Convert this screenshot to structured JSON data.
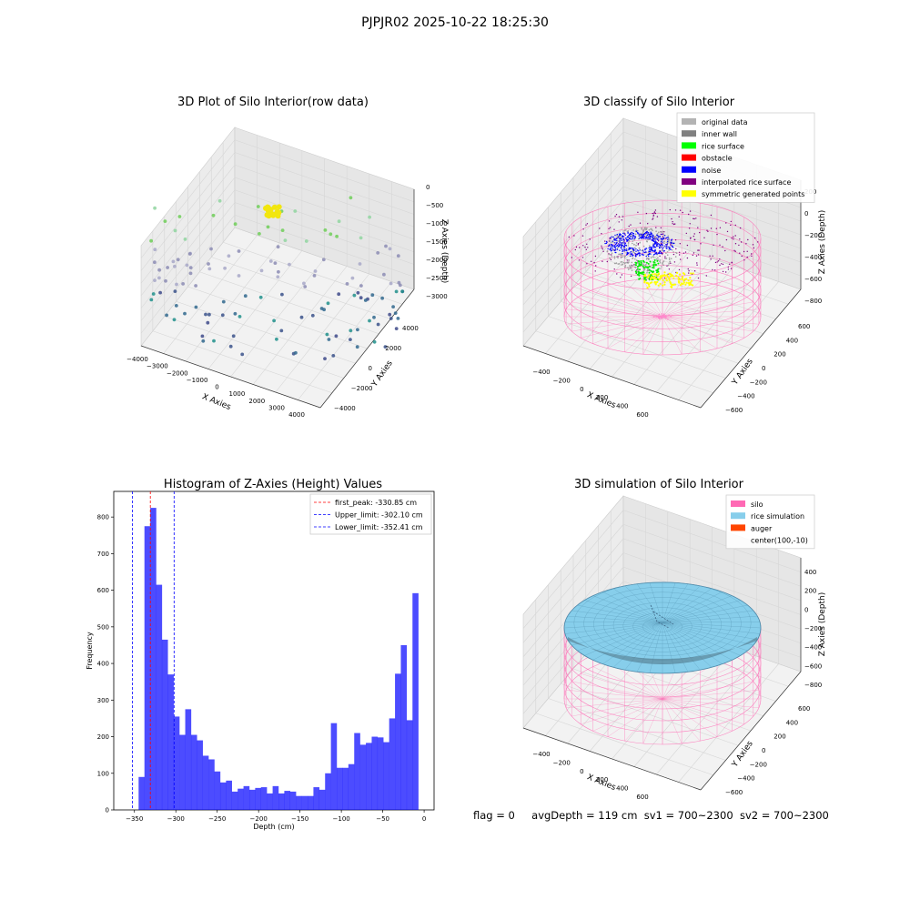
{
  "suptitle": "PJPJR02 2025-10-22 18:25:30",
  "footer": {
    "flag": "flag = 0",
    "avg_depth": "avgDepth = 119 cm",
    "sv1": "sv1 = 700~2300",
    "sv2": "sv2 = 700~2300"
  },
  "chart_data": [
    {
      "type": "scatter",
      "title": "3D Plot of Silo Interior(row data)",
      "xlabel": "X Axies",
      "ylabel": "Y Axies",
      "zlabel": "Z Axies (Depth)",
      "x_ticks": [
        "−4000",
        "−3000",
        "−2000",
        "−1000",
        "0",
        "1000",
        "2000",
        "3000",
        "4000"
      ],
      "y_ticks": [
        "−4000",
        "−2000",
        "0",
        "2000",
        "4000"
      ],
      "z_ticks": [
        "−3000",
        "−2500",
        "−2000",
        "−1500",
        "−1000",
        "−500",
        "0"
      ],
      "xlim": [
        -4000,
        4000
      ],
      "ylim": [
        -4000,
        4000
      ],
      "zlim": [
        -3300,
        0
      ],
      "grid": true
    },
    {
      "type": "scatter",
      "title": "3D classify of Silo Interior",
      "xlabel": "X Axies",
      "ylabel": "Y Axies",
      "zlabel": "Z Axies (Depth)",
      "x_ticks": [
        "−400",
        "−200",
        "0",
        "200",
        "400",
        "600"
      ],
      "y_ticks": [
        "−600",
        "−400",
        "−200",
        "0",
        "200",
        "400",
        "600"
      ],
      "z_ticks": [
        "−800",
        "−600",
        "−400",
        "−200",
        "0",
        "200"
      ],
      "xlim": [
        -500,
        700
      ],
      "ylim": [
        -650,
        650
      ],
      "zlim": [
        -900,
        250
      ],
      "legend_position": "top-right",
      "legend": [
        {
          "label": "original data",
          "color": "#b3b3b3"
        },
        {
          "label": "inner wall",
          "color": "#808080"
        },
        {
          "label": "rice surface",
          "color": "#00ff00"
        },
        {
          "label": "obstacle",
          "color": "#ff0000"
        },
        {
          "label": "noise",
          "color": "#0000ff"
        },
        {
          "label": "interpolated rice surface",
          "color": "#800080"
        },
        {
          "label": "symmetric generated points",
          "color": "#ffff00"
        }
      ],
      "grid": true
    },
    {
      "type": "bar",
      "title": "Histogram of Z-Axies (Height) Values",
      "xlabel": "Depth (cm)",
      "ylabel": "Frequency",
      "x_ticks": [
        -350,
        -300,
        -250,
        -200,
        -150,
        -100,
        -50,
        0
      ],
      "x_tick_labels": [
        "−350",
        "−300",
        "−250",
        "−200",
        "−150",
        "−100",
        "−50",
        "0"
      ],
      "y_ticks": [
        0,
        100,
        200,
        300,
        400,
        500,
        600,
        700,
        800
      ],
      "xlim": [
        -375,
        12
      ],
      "ylim": [
        0,
        870
      ],
      "bin_start": -352,
      "bin_width": 7.04,
      "values": [
        0,
        90,
        775,
        825,
        615,
        465,
        370,
        255,
        205,
        275,
        205,
        190,
        148,
        138,
        105,
        75,
        80,
        50,
        58,
        65,
        55,
        60,
        62,
        45,
        65,
        45,
        52,
        50,
        38,
        38,
        38,
        62,
        55,
        100,
        237,
        115,
        115,
        125,
        210,
        178,
        183,
        200,
        198,
        185,
        250,
        372,
        450,
        245,
        592
      ],
      "bar_color": "#0000ff",
      "bar_alpha": 0.7,
      "lines": [
        {
          "label": "first_peak: -330.85 cm",
          "x": -330.85,
          "color": "#ff0000"
        },
        {
          "label": "Upper_limit: -302.10 cm",
          "x": -302.1,
          "color": "#0000ff"
        },
        {
          "label": "Lower_limit: -352.41 cm",
          "x": -352.41,
          "color": "#0000ff"
        }
      ],
      "legend_position": "top-right"
    },
    {
      "type": "surface",
      "title": "3D simulation of Silo Interior",
      "xlabel": "X Axies",
      "ylabel": "Y Axies",
      "zlabel": "Z Axies (Depth)",
      "x_ticks": [
        "−400",
        "−200",
        "0",
        "200",
        "400",
        "600"
      ],
      "y_ticks": [
        "−600",
        "−400",
        "−200",
        "0",
        "200",
        "400",
        "600"
      ],
      "z_ticks": [
        "−800",
        "−600",
        "−400",
        "−200",
        "0",
        "200",
        "400"
      ],
      "xlim": [
        -500,
        700
      ],
      "ylim": [
        -650,
        650
      ],
      "zlim": [
        -900,
        450
      ],
      "legend_position": "top-right",
      "legend": [
        {
          "label": "silo",
          "color": "#ff69b4"
        },
        {
          "label": "rice simulation",
          "color": "#87ceeb"
        },
        {
          "label": "auger",
          "color": "#ff4500"
        },
        {
          "label": "center(100,-10)",
          "color": "none"
        }
      ],
      "grid": true
    }
  ]
}
